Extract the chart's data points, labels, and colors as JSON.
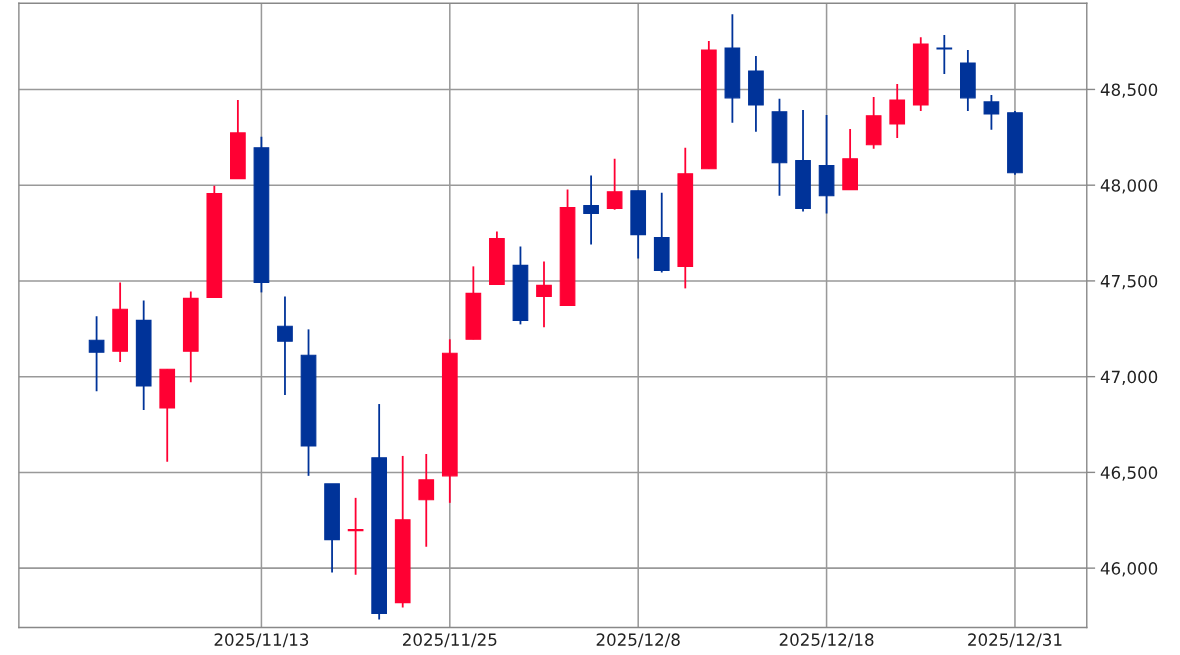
{
  "chart_data": {
    "type": "candlestick",
    "categories": [
      null,
      null,
      null,
      null,
      null,
      null,
      null,
      "2025/11/13",
      null,
      null,
      null,
      null,
      null,
      null,
      null,
      "2025/11/25",
      null,
      null,
      null,
      null,
      null,
      null,
      null,
      "2025/12/8",
      null,
      null,
      null,
      null,
      null,
      null,
      null,
      "2025/12/18",
      null,
      null,
      null,
      null,
      null,
      null,
      null,
      "2025/12/31"
    ],
    "ohlc": [
      [
        47190,
        47315,
        46924,
        47128
      ],
      [
        47133,
        47492,
        47076,
        47352
      ],
      [
        47294,
        47398,
        46826,
        46951
      ],
      [
        46836,
        47039,
        46555,
        47039
      ],
      [
        47133,
        47445,
        46971,
        47409
      ],
      [
        47414,
        47997,
        47414,
        47956
      ],
      [
        48034,
        48445,
        48034,
        48273
      ],
      [
        48195,
        48253,
        47440,
        47492
      ],
      [
        47263,
        47419,
        46904,
        47185
      ],
      [
        47112,
        47247,
        46482,
        46638
      ],
      [
        46440,
        46440,
        45977,
        46149
      ],
      [
        46195,
        46367,
        45966,
        46201
      ],
      [
        46576,
        46857,
        45732,
        45763
      ],
      [
        45820,
        46586,
        45794,
        46253
      ],
      [
        46357,
        46596,
        46112,
        46461
      ],
      [
        46482,
        47195,
        46341,
        47122
      ],
      [
        47195,
        47576,
        47195,
        47435
      ],
      [
        47482,
        47758,
        47482,
        47721
      ],
      [
        47581,
        47680,
        47273,
        47294
      ],
      [
        47419,
        47602,
        47258,
        47477
      ],
      [
        47372,
        47977,
        47372,
        47883
      ],
      [
        47893,
        48050,
        47690,
        47852
      ],
      [
        47878,
        48138,
        47872,
        47966
      ],
      [
        47971,
        47971,
        47617,
        47742
      ],
      [
        47727,
        47961,
        47544,
        47555
      ],
      [
        47576,
        48195,
        47461,
        48060
      ],
      [
        48086,
        48753,
        48086,
        48706
      ],
      [
        48716,
        48893,
        48326,
        48456
      ],
      [
        48596,
        48675,
        48279,
        48419
      ],
      [
        48383,
        48451,
        47945,
        48117
      ],
      [
        48128,
        48393,
        47862,
        47878
      ],
      [
        48102,
        48367,
        47852,
        47945
      ],
      [
        47977,
        48294,
        47977,
        48138
      ],
      [
        48211,
        48461,
        48190,
        48362
      ],
      [
        48320,
        48529,
        48247,
        48445
      ],
      [
        48419,
        48773,
        48388,
        48737
      ],
      [
        48716,
        48784,
        48581,
        48711
      ],
      [
        48638,
        48706,
        48388,
        48456
      ],
      [
        48435,
        48471,
        48289,
        48372
      ],
      [
        48378,
        48388,
        48055,
        48065
      ]
    ],
    "colors": [
      "#003399",
      "#ff0033",
      "#003399",
      "#ff0033",
      "#ff0033",
      "#ff0033",
      "#ff0033",
      "#003399",
      "#003399",
      "#003399",
      "#003399",
      "#ff0033",
      "#003399",
      "#ff0033",
      "#ff0033",
      "#ff0033",
      "#ff0033",
      "#ff0033",
      "#003399",
      "#ff0033",
      "#ff0033",
      "#003399",
      "#ff0033",
      "#003399",
      "#003399",
      "#ff0033",
      "#ff0033",
      "#003399",
      "#003399",
      "#003399",
      "#003399",
      "#003399",
      "#ff0033",
      "#ff0033",
      "#ff0033",
      "#ff0033",
      "#003399",
      "#003399",
      "#003399",
      "#003399"
    ],
    "ylim": [
      45690,
      48950
    ],
    "yticks": [
      {
        "value": 46000,
        "label": "46,000"
      },
      {
        "value": 46500,
        "label": "46,500"
      },
      {
        "value": 47000,
        "label": "47,000"
      },
      {
        "value": 47500,
        "label": "47,500"
      },
      {
        "value": 48000,
        "label": "48,000"
      },
      {
        "value": 48500,
        "label": "48,500"
      }
    ],
    "grid": true
  }
}
